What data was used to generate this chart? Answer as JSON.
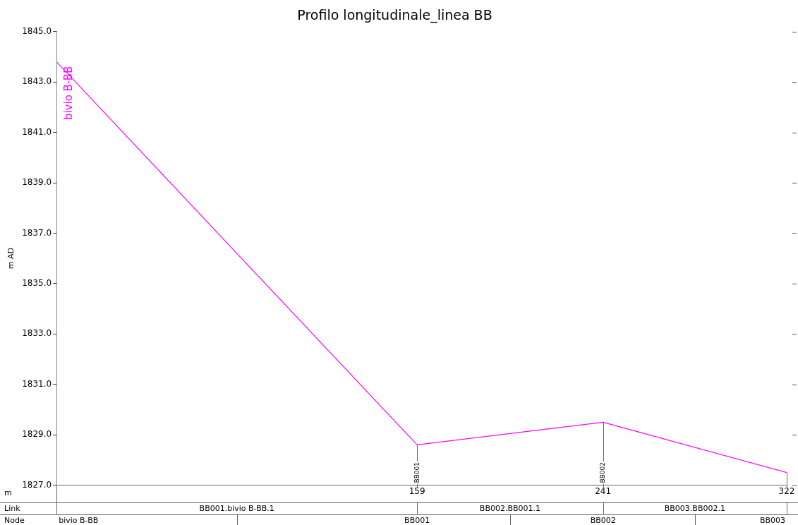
{
  "chart_data": {
    "type": "line",
    "title": "Profilo longitudinale_linea BB",
    "xlabel": "m",
    "ylabel": "m AD",
    "x": [
      0,
      159,
      241,
      322
    ],
    "series": [
      {
        "color": "#ff00ff",
        "values": [
          1843.8,
          1828.6,
          1829.5,
          1827.5
        ]
      }
    ],
    "xlim": [
      0,
      322
    ],
    "xticks": [
      159,
      241,
      322
    ],
    "ylim": [
      1827,
      1845
    ],
    "yticks": [
      {
        "value": 1827,
        "label": "1827.0"
      },
      {
        "value": 1829,
        "label": "1829.0"
      },
      {
        "value": 1831,
        "label": "1831.0"
      },
      {
        "value": 1833,
        "label": "1833.0"
      },
      {
        "value": 1835,
        "label": "1835.0"
      },
      {
        "value": 1837,
        "label": "1837.0"
      },
      {
        "value": 1839,
        "label": "1839.0"
      },
      {
        "value": 1841,
        "label": "1841.0"
      },
      {
        "value": 1843,
        "label": "1843.0"
      },
      {
        "value": 1845,
        "label": "1845.0"
      }
    ],
    "grid": false,
    "legend": false,
    "marker": "none",
    "line_style": "solid",
    "annotations": [
      {
        "text": "bivio B-BB",
        "x": 0,
        "y": 1843.8
      },
      {
        "text": "BB001",
        "x": 159,
        "y": 1827.5
      },
      {
        "text": "BB002",
        "x": 241,
        "y": 1827.5
      },
      "Link",
      "BB001.bivio B-BB.1",
      "BB002.BB001.1",
      "BB003.BB002.1",
      "Node",
      "bivio B-BB",
      "BB001",
      "BB002",
      "BB003"
    ]
  }
}
